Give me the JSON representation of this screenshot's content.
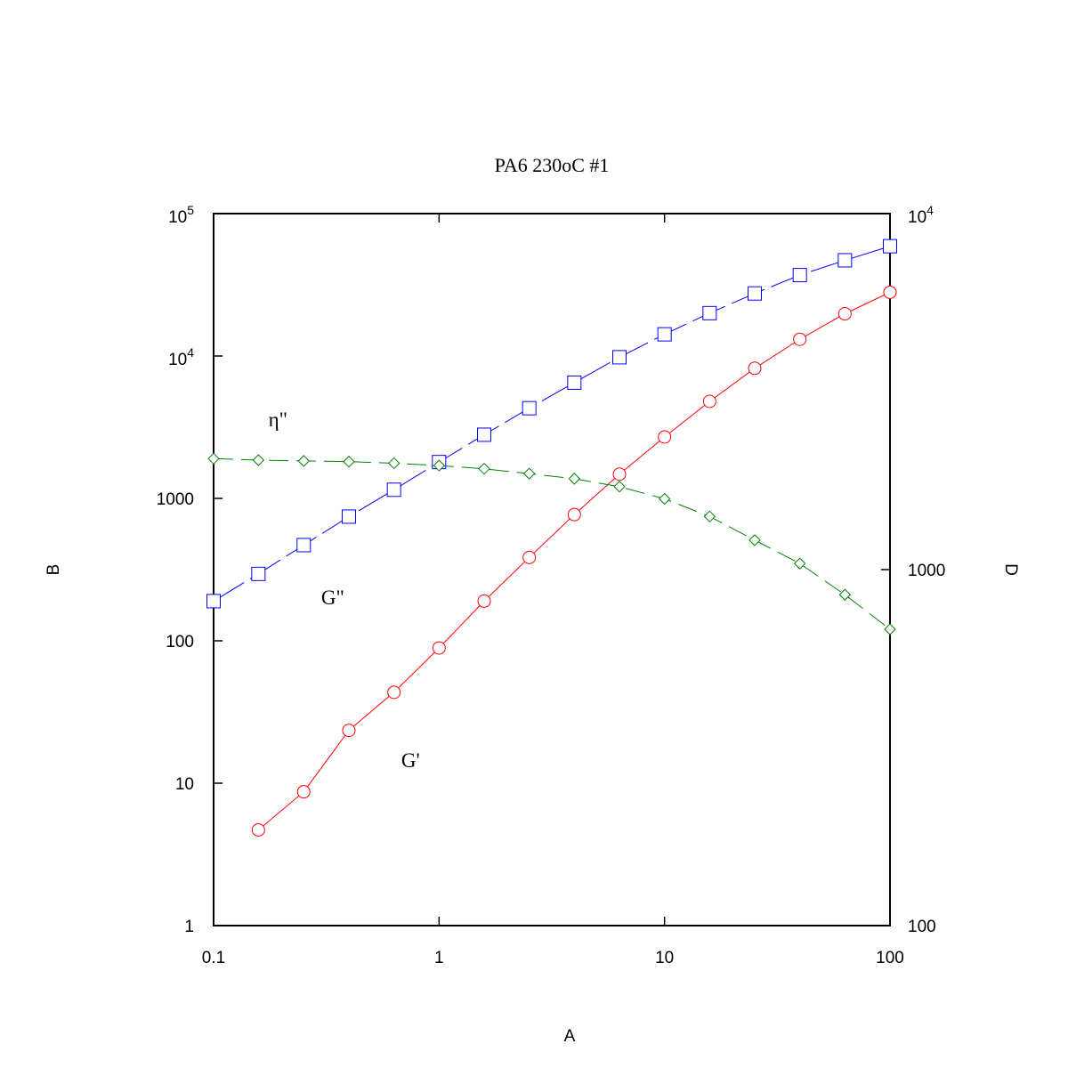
{
  "chart_data": {
    "type": "line",
    "title": "PA6 230oC #1",
    "xlabel": "A",
    "ylabel": "B",
    "y2label": "D",
    "xscale": "log",
    "yscale": "log",
    "y2scale": "log",
    "xlim": [
      0.1,
      100
    ],
    "ylim": [
      1,
      100000
    ],
    "y2lim": [
      100,
      10000
    ],
    "grid": false,
    "legend": "none",
    "x_ticks": [
      {
        "value": 0.1,
        "label": "0.1"
      },
      {
        "value": 1,
        "label": "1"
      },
      {
        "value": 10,
        "label": "10"
      },
      {
        "value": 100,
        "label": "100"
      }
    ],
    "y_ticks": [
      {
        "value": 1,
        "label": "1"
      },
      {
        "value": 10,
        "label": "10"
      },
      {
        "value": 100,
        "label": "100"
      },
      {
        "value": 1000,
        "label": "1000"
      },
      {
        "value": 10000,
        "base": "10",
        "exp": "4"
      },
      {
        "value": 100000,
        "base": "10",
        "exp": "5"
      }
    ],
    "y2_ticks": [
      {
        "value": 100,
        "label": "100"
      },
      {
        "value": 1000,
        "label": "1000"
      },
      {
        "value": 10000,
        "base": "10",
        "exp": "4"
      }
    ],
    "annotations": [
      {
        "text": "η\"",
        "x": 0.175,
        "y": 3200,
        "axis": "left"
      },
      {
        "text": "G\"",
        "x": 0.3,
        "y": 180,
        "axis": "left"
      },
      {
        "text": "G'",
        "x": 0.68,
        "y": 13,
        "axis": "left"
      }
    ],
    "series": [
      {
        "key": "g-double-prime",
        "axis": "left",
        "color": "#0000ff",
        "marker": "square",
        "dash": "40,8",
        "x": [
          0.1,
          0.158,
          0.251,
          0.398,
          0.631,
          1,
          1.585,
          2.512,
          3.981,
          6.31,
          10,
          15.85,
          25.12,
          39.81,
          63.1,
          100
        ],
        "values": [
          190,
          295,
          470,
          745,
          1150,
          1800,
          2800,
          4300,
          6500,
          9800,
          14200,
          20000,
          27500,
          37000,
          47000,
          59000
        ]
      },
      {
        "key": "g-prime",
        "axis": "left",
        "color": "#ff0000",
        "marker": "circle",
        "dash": "",
        "x": [
          0.158,
          0.251,
          0.398,
          0.631,
          1,
          1.585,
          2.512,
          3.981,
          6.31,
          10,
          15.85,
          25.12,
          39.81,
          63.1,
          100
        ],
        "values": [
          4.7,
          8.7,
          23.5,
          43.5,
          89,
          190,
          385,
          770,
          1480,
          2700,
          4800,
          8200,
          13100,
          19800,
          28000
        ]
      },
      {
        "key": "eta-double-prime",
        "axis": "right",
        "color": "#008000",
        "marker": "diamond",
        "dash": "22,9",
        "x": [
          0.1,
          0.158,
          0.251,
          0.398,
          0.631,
          1,
          1.585,
          2.512,
          3.981,
          6.31,
          10,
          15.85,
          25.12,
          39.81,
          63.1,
          100
        ],
        "values": [
          2050,
          2030,
          2020,
          2010,
          1990,
          1960,
          1920,
          1860,
          1800,
          1710,
          1580,
          1410,
          1210,
          1040,
          850,
          680
        ]
      }
    ]
  }
}
